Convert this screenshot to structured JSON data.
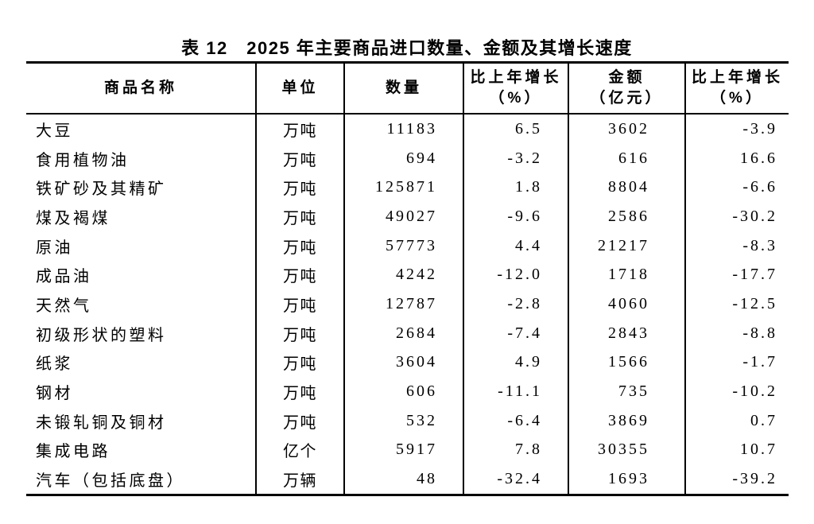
{
  "page": {
    "background": "#ffffff",
    "text_color": "#000000",
    "border_color": "#000000"
  },
  "table": {
    "title": "表 12　2025 年主要商品进口数量、金额及其增长速度",
    "headers": {
      "name": "商品名称",
      "unit": "单位",
      "quantity": "数量",
      "quantity_growth_line1": "比上年增长",
      "quantity_growth_line2": "（%）",
      "amount_line1": "金额",
      "amount_line2": "（亿元）",
      "amount_growth_line1": "比上年增长",
      "amount_growth_line2": "（%）"
    },
    "column_keys": [
      "name",
      "unit",
      "quantity",
      "quantity_growth",
      "amount",
      "amount_growth"
    ],
    "rows": [
      {
        "name": "大豆",
        "unit": "万吨",
        "quantity": "11183",
        "quantity_growth": "6.5",
        "amount": "3602",
        "amount_growth": "-3.9"
      },
      {
        "name": "食用植物油",
        "unit": "万吨",
        "quantity": "694",
        "quantity_growth": "-3.2",
        "amount": "616",
        "amount_growth": "16.6"
      },
      {
        "name": "铁矿砂及其精矿",
        "unit": "万吨",
        "quantity": "125871",
        "quantity_growth": "1.8",
        "amount": "8804",
        "amount_growth": "-6.6"
      },
      {
        "name": "煤及褐煤",
        "unit": "万吨",
        "quantity": "49027",
        "quantity_growth": "-9.6",
        "amount": "2586",
        "amount_growth": "-30.2"
      },
      {
        "name": "原油",
        "unit": "万吨",
        "quantity": "57773",
        "quantity_growth": "4.4",
        "amount": "21217",
        "amount_growth": "-8.3"
      },
      {
        "name": "成品油",
        "unit": "万吨",
        "quantity": "4242",
        "quantity_growth": "-12.0",
        "amount": "1718",
        "amount_growth": "-17.7"
      },
      {
        "name": "天然气",
        "unit": "万吨",
        "quantity": "12787",
        "quantity_growth": "-2.8",
        "amount": "4060",
        "amount_growth": "-12.5"
      },
      {
        "name": "初级形状的塑料",
        "unit": "万吨",
        "quantity": "2684",
        "quantity_growth": "-7.4",
        "amount": "2843",
        "amount_growth": "-8.8"
      },
      {
        "name": "纸浆",
        "unit": "万吨",
        "quantity": "3604",
        "quantity_growth": "4.9",
        "amount": "1566",
        "amount_growth": "-1.7"
      },
      {
        "name": "钢材",
        "unit": "万吨",
        "quantity": "606",
        "quantity_growth": "-11.1",
        "amount": "735",
        "amount_growth": "-10.2"
      },
      {
        "name": "未锻轧铜及铜材",
        "unit": "万吨",
        "quantity": "532",
        "quantity_growth": "-6.4",
        "amount": "3869",
        "amount_growth": "0.7"
      },
      {
        "name": "集成电路",
        "unit": "亿个",
        "quantity": "5917",
        "quantity_growth": "7.8",
        "amount": "30355",
        "amount_growth": "10.7"
      },
      {
        "name": "汽车（包括底盘）",
        "unit": "万辆",
        "quantity": "48",
        "quantity_growth": "-32.4",
        "amount": "1693",
        "amount_growth": "-39.2"
      }
    ]
  }
}
